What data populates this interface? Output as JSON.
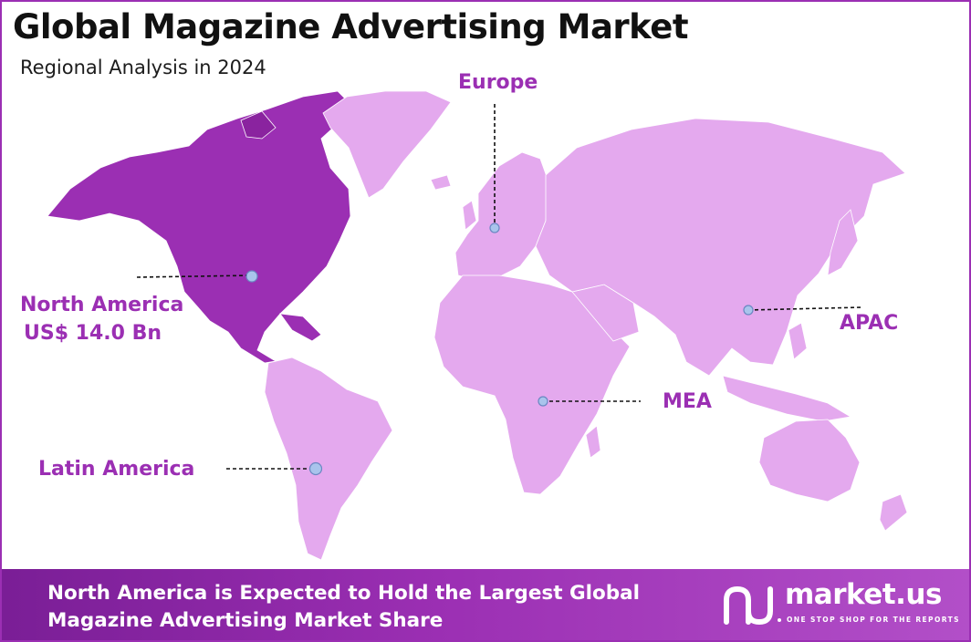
{
  "title": "Global Magazine Advertising Market",
  "subtitle": "Regional Analysis in 2024",
  "regions": {
    "north_america": {
      "name": "North America",
      "value": "US$ 14.0 Bn"
    },
    "europe": {
      "name": "Europe"
    },
    "apac": {
      "name": "APAC"
    },
    "mea": {
      "name": "MEA"
    },
    "latin_america": {
      "name": "Latin America"
    }
  },
  "footer": {
    "line1": "North America is Expected to Hold the Largest Global",
    "line2": "Magazine Advertising Market Share"
  },
  "logo": {
    "name": "market.us",
    "tagline": "ONE STOP SHOP FOR THE REPORTS"
  },
  "colors": {
    "highlight_region": "#9b2fb3",
    "other_regions": "#e4a9ee",
    "label": "#9b2fb3",
    "marker": "#a9c4ec"
  }
}
